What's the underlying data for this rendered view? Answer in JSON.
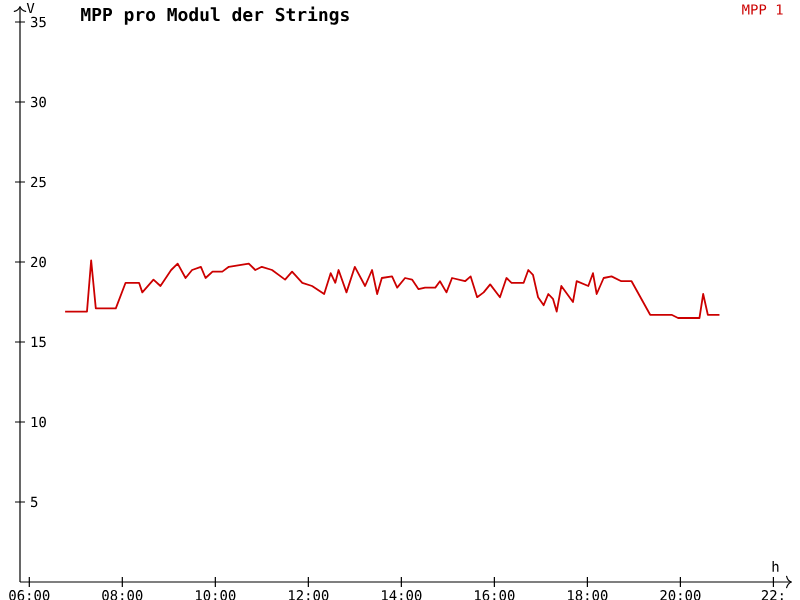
{
  "chart_data": {
    "type": "line",
    "title": "MPP pro Modul der Strings",
    "xlabel": "h",
    "ylabel": "V",
    "legend": "top right",
    "grid": false,
    "marker": "none",
    "line_style": "solid",
    "xlim": [
      5.8,
      22.4
    ],
    "ylim": [
      0,
      36
    ],
    "xticks": [
      {
        "value": 6,
        "label": "06:00"
      },
      {
        "value": 8,
        "label": "08:00"
      },
      {
        "value": 10,
        "label": "10:00"
      },
      {
        "value": 12,
        "label": "12:00"
      },
      {
        "value": 14,
        "label": "14:00"
      },
      {
        "value": 16,
        "label": "16:00"
      },
      {
        "value": 18,
        "label": "18:00"
      },
      {
        "value": 20,
        "label": "20:00"
      },
      {
        "value": 22,
        "label": "22:"
      }
    ],
    "yticks": [
      5,
      10,
      15,
      20,
      25,
      30,
      35
    ],
    "series": [
      {
        "name": "MPP 1",
        "color": "#cc0000",
        "x": [
          6.77,
          7.24,
          7.33,
          7.43,
          7.86,
          8.07,
          8.36,
          8.43,
          8.67,
          8.82,
          9.05,
          9.19,
          9.36,
          9.5,
          9.69,
          9.79,
          9.94,
          10.15,
          10.29,
          10.72,
          10.86,
          11.0,
          11.22,
          11.5,
          11.65,
          11.87,
          12.08,
          12.34,
          12.48,
          12.58,
          12.65,
          12.82,
          13.0,
          13.22,
          13.37,
          13.48,
          13.58,
          13.8,
          13.91,
          14.08,
          14.23,
          14.37,
          14.51,
          14.73,
          14.83,
          14.97,
          15.09,
          15.37,
          15.49,
          15.63,
          15.77,
          15.91,
          16.12,
          16.26,
          16.37,
          16.63,
          16.73,
          16.83,
          16.94,
          17.06,
          17.16,
          17.26,
          17.34,
          17.44,
          17.69,
          17.77,
          18.02,
          18.12,
          18.2,
          18.35,
          18.52,
          18.73,
          18.95,
          19.35,
          19.81,
          19.95,
          20.41,
          20.49,
          20.59,
          20.84
        ],
        "values": [
          16.9,
          16.9,
          20.1,
          17.1,
          17.1,
          18.7,
          18.7,
          18.1,
          18.9,
          18.5,
          19.5,
          19.9,
          19.0,
          19.5,
          19.7,
          19.0,
          19.4,
          19.4,
          19.7,
          19.9,
          19.5,
          19.7,
          19.5,
          18.9,
          19.4,
          18.7,
          18.5,
          18.0,
          19.3,
          18.7,
          19.5,
          18.1,
          19.7,
          18.5,
          19.5,
          18.0,
          19.0,
          19.1,
          18.4,
          19.0,
          18.9,
          18.3,
          18.4,
          18.4,
          18.8,
          18.1,
          19.0,
          18.8,
          19.1,
          17.8,
          18.1,
          18.6,
          17.8,
          19.0,
          18.7,
          18.7,
          19.5,
          19.2,
          17.8,
          17.3,
          18.0,
          17.7,
          16.9,
          18.5,
          17.5,
          18.8,
          18.5,
          19.3,
          18.0,
          19.0,
          19.1,
          18.8,
          18.8,
          16.7,
          16.7,
          16.5,
          16.5,
          18.0,
          16.7,
          16.7
        ]
      }
    ]
  }
}
